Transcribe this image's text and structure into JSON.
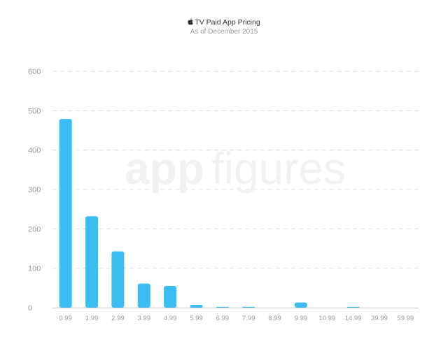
{
  "header": {
    "title_text": "TV Paid App Pricing",
    "subtitle": "As of December 2015"
  },
  "watermark": {
    "text_1": "app",
    "text_2": "figures"
  },
  "icons": {
    "title_icon": "apple-logo-icon"
  },
  "colors": {
    "bar": "#3bbdf2",
    "grid": "#dddddd",
    "axis": "#c8c8c8",
    "tick_text": "#999999"
  },
  "chart_data": {
    "type": "bar",
    "title": "TV Paid App Pricing",
    "subtitle": "As of December 2015",
    "xlabel": "",
    "ylabel": "",
    "categories": [
      "0.99",
      "1.99",
      "2.99",
      "3.99",
      "4.99",
      "5.99",
      "6.99",
      "7.99",
      "8.99",
      "9.99",
      "10.99",
      "14.99",
      "39.99",
      "59.99"
    ],
    "values": [
      479,
      232,
      143,
      61,
      55,
      7,
      2,
      2,
      0,
      13,
      0,
      2,
      0,
      0
    ],
    "ylim": [
      0,
      600
    ],
    "yticks": [
      0,
      100,
      200,
      300,
      400,
      500,
      600
    ],
    "grid": true,
    "legend": "none"
  }
}
